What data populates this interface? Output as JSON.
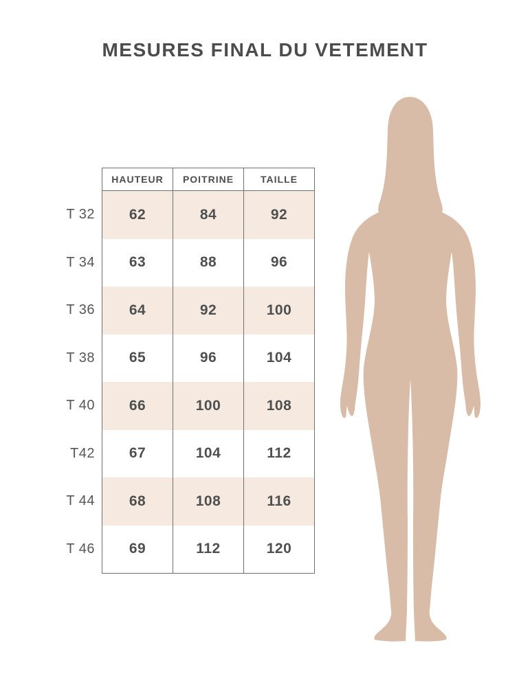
{
  "page": {
    "title": "MESURES FINAL DU VETEMENT"
  },
  "size_table": {
    "column_headers": [
      "HAUTEUR",
      "POITRINE",
      "TAILLE"
    ],
    "rows": [
      {
        "label": "T 32",
        "values": [
          "62",
          "84",
          "92"
        ],
        "shaded": true
      },
      {
        "label": "T 34",
        "values": [
          "63",
          "88",
          "96"
        ],
        "shaded": false
      },
      {
        "label": "T 36",
        "values": [
          "64",
          "92",
          "100"
        ],
        "shaded": true
      },
      {
        "label": "T 38",
        "values": [
          "65",
          "96",
          "104"
        ],
        "shaded": false
      },
      {
        "label": "T 40",
        "values": [
          "66",
          "100",
          "108"
        ],
        "shaded": true
      },
      {
        "label": "T42",
        "values": [
          "67",
          "104",
          "112"
        ],
        "shaded": false
      },
      {
        "label": "T 44",
        "values": [
          "68",
          "108",
          "116"
        ],
        "shaded": true
      },
      {
        "label": "T 46",
        "values": [
          "69",
          "112",
          "120"
        ],
        "shaded": false
      }
    ]
  },
  "figure": {
    "name": "woman-silhouette",
    "fill": "#d8bca8"
  },
  "colors": {
    "title_text": "#4c4c4c",
    "header_text": "#4c4c4c",
    "cell_text": "#4f4f4f",
    "label_text": "#565656",
    "border": "#6f6f6f",
    "row_shaded": "#f5e9e0",
    "background": "#ffffff"
  }
}
